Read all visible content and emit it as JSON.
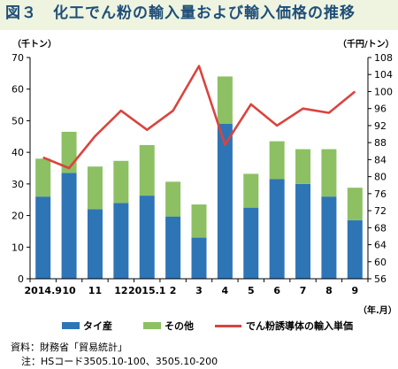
{
  "title": "図３　化工でん粉の輸入量および輸入価格の推移",
  "left_unit": "（千トン）",
  "right_unit": "（千円/トン）",
  "x_unit": "（年.月）",
  "source": "資料：財務省「貿易統計」",
  "note": "注：HSコード3505.10-100、3505.10-200",
  "colors": {
    "thai": "#2e75b6",
    "other": "#8dc063",
    "price": "#d9443f",
    "title_bg": "#eef4e0",
    "title_text": "#1f4e79"
  },
  "chart_data": {
    "type": "bar",
    "stacked": true,
    "categories": [
      "2014.9",
      "10",
      "11",
      "12",
      "2015.1",
      "2",
      "3",
      "4",
      "5",
      "6",
      "7",
      "8",
      "9"
    ],
    "series": [
      {
        "name": "タイ産",
        "type": "bar",
        "axis": "left",
        "values": [
          26,
          33.5,
          22,
          24,
          26.3,
          19.7,
          13,
          49,
          22.5,
          31.5,
          30,
          26,
          18.5
        ]
      },
      {
        "name": "その他",
        "type": "bar",
        "axis": "left",
        "values": [
          12,
          13,
          13.5,
          13.3,
          16,
          11,
          10.5,
          15,
          10.7,
          12,
          11,
          15,
          10.3
        ]
      },
      {
        "name": "でん粉誘導体の輸入単価",
        "type": "line",
        "axis": "right",
        "values": [
          84.5,
          82,
          89.5,
          95.5,
          91,
          95.5,
          106,
          87.5,
          97,
          92,
          96,
          95,
          100
        ]
      }
    ],
    "y_left": {
      "min": 0,
      "max": 70,
      "ticks": [
        0,
        10,
        20,
        30,
        40,
        50,
        60,
        70
      ]
    },
    "y_right": {
      "min": 56,
      "max": 108,
      "ticks": [
        56,
        60,
        64,
        68,
        72,
        76,
        80,
        84,
        88,
        92,
        96,
        100,
        104,
        108
      ]
    },
    "grid": false,
    "legend_position": "bottom"
  }
}
